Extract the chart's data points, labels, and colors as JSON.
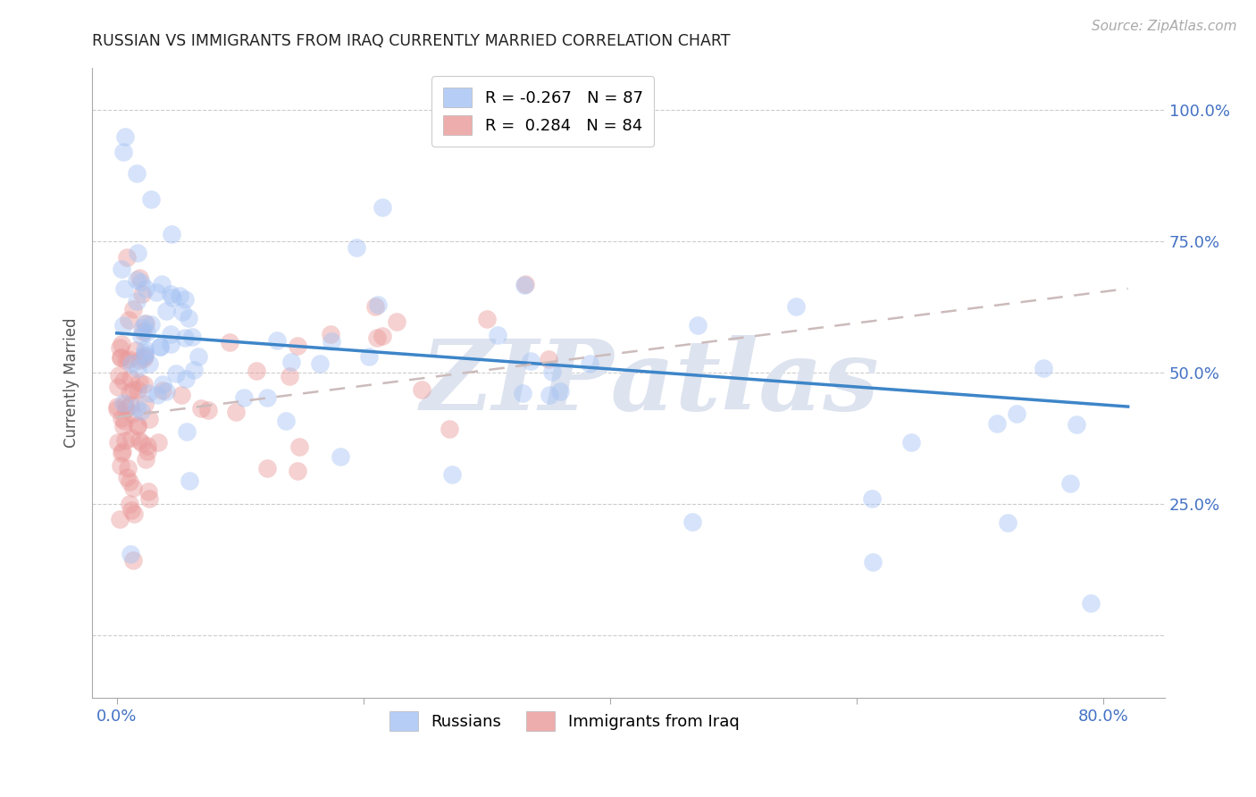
{
  "title": "RUSSIAN VS IMMIGRANTS FROM IRAQ CURRENTLY MARRIED CORRELATION CHART",
  "source": "Source: ZipAtlas.com",
  "ylabel_label": "Currently Married",
  "ylabel_ticks_vals": [
    0.0,
    0.25,
    0.5,
    0.75,
    1.0
  ],
  "ylabel_ticks_labels": [
    "",
    "25.0%",
    "50.0%",
    "75.0%",
    "100.0%"
  ],
  "xticks_vals": [
    0.0,
    0.8
  ],
  "xticks_labels": [
    "0.0%",
    "80.0%"
  ],
  "xlim": [
    -0.02,
    0.85
  ],
  "ylim": [
    -0.12,
    1.08
  ],
  "russians_color": "#a4c2f4",
  "iraq_color": "#ea9999",
  "trendline_russian_color": "#3d85c8",
  "trendline_iraq_color": "#ccbbbb",
  "background_color": "#ffffff",
  "grid_color": "#cccccc",
  "watermark": "ZIPatlas",
  "watermark_color": "#dde3ef",
  "axis_label_color": "#4472c4",
  "title_color": "#222222",
  "russians_R": -0.267,
  "iraq_R": 0.284,
  "russians_N": 87,
  "iraq_N": 84,
  "seed": 7
}
